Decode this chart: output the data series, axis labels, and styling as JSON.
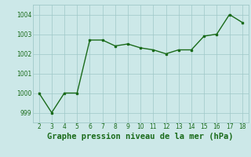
{
  "x": [
    2,
    3,
    4,
    5,
    6,
    7,
    8,
    9,
    10,
    11,
    12,
    13,
    14,
    15,
    16,
    17,
    18
  ],
  "y": [
    1000,
    999,
    1000,
    1000,
    1002.7,
    1002.7,
    1002.4,
    1002.5,
    1002.3,
    1002.2,
    1002.0,
    1002.2,
    1002.2,
    1002.9,
    1003.0,
    1004.0,
    1003.6
  ],
  "title": "Graphe pression niveau de la mer (hPa)",
  "xlim": [
    1.5,
    18.5
  ],
  "ylim": [
    998.5,
    1004.5
  ],
  "yticks": [
    999,
    1000,
    1001,
    1002,
    1003,
    1004
  ],
  "xticks": [
    2,
    3,
    4,
    5,
    6,
    7,
    8,
    9,
    10,
    11,
    12,
    13,
    14,
    15,
    16,
    17,
    18
  ],
  "line_color": "#1a6b1a",
  "marker_color": "#1a6b1a",
  "bg_color": "#cce8e8",
  "grid_color": "#9fc8c8",
  "title_color": "#1a6b1a",
  "title_fontsize": 7.5
}
